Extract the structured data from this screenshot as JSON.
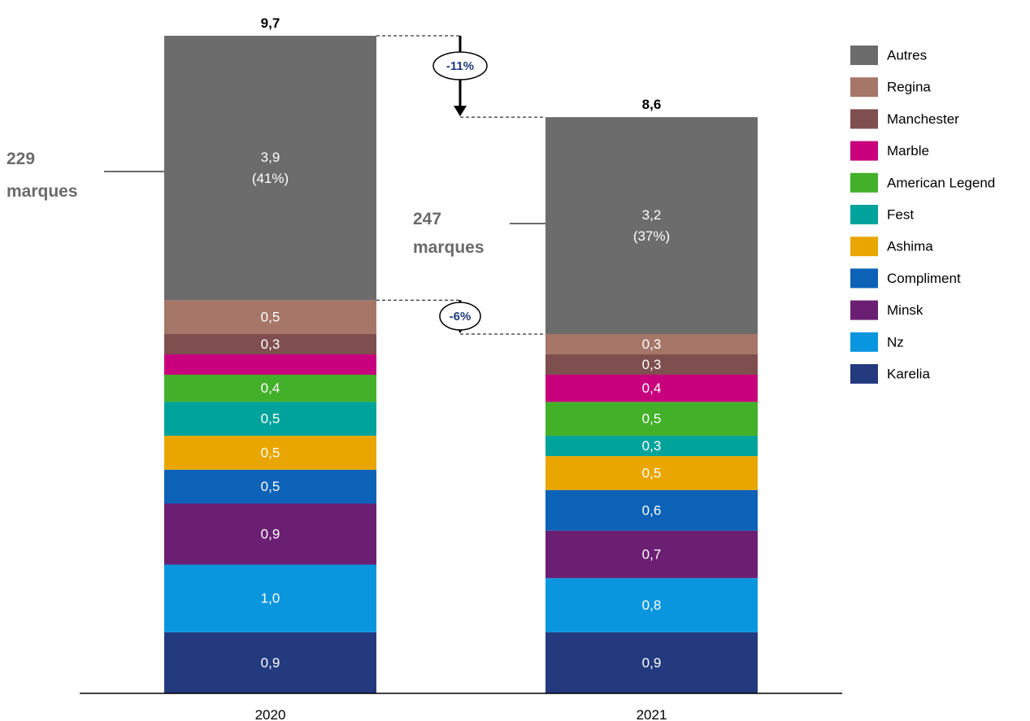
{
  "chart_data": {
    "type": "bar",
    "stacked": true,
    "categories": [
      "2020",
      "2021"
    ],
    "totals": [
      "9,7",
      "8,6"
    ],
    "series": [
      {
        "name": "Karelia",
        "color": "#233a7e",
        "values": [
          0.9,
          0.9
        ],
        "labels": [
          "0,9",
          "0,9"
        ]
      },
      {
        "name": "Nz",
        "color": "#0a96de",
        "values": [
          1.0,
          0.8
        ],
        "labels": [
          "1,0",
          "0,8"
        ]
      },
      {
        "name": "Minsk",
        "color": "#6b1f73",
        "values": [
          0.9,
          0.7
        ],
        "labels": [
          "0,9",
          "0,7"
        ]
      },
      {
        "name": "Compliment",
        "color": "#0c62b7",
        "values": [
          0.5,
          0.6
        ],
        "labels": [
          "0,5",
          "0,6"
        ]
      },
      {
        "name": "Ashima",
        "color": "#eaa600",
        "values": [
          0.5,
          0.5
        ],
        "labels": [
          "0,5",
          "0,5"
        ]
      },
      {
        "name": "Fest",
        "color": "#00a39b",
        "values": [
          0.5,
          0.3
        ],
        "labels": [
          "0,5",
          "0,3"
        ]
      },
      {
        "name": "American Legend",
        "color": "#43b02a",
        "values": [
          0.4,
          0.5
        ],
        "labels": [
          "0,4",
          "0,5"
        ]
      },
      {
        "name": "Marble",
        "color": "#c8007d",
        "values": [
          0.3,
          0.4
        ],
        "labels": [
          "",
          "0,4"
        ]
      },
      {
        "name": "Manchester",
        "color": "#7f4e4e",
        "values": [
          0.3,
          0.3
        ],
        "labels": [
          "0,3",
          "0,3"
        ]
      },
      {
        "name": "Regina",
        "color": "#a67669",
        "values": [
          0.5,
          0.3
        ],
        "labels": [
          "0,5",
          "0,3"
        ]
      },
      {
        "name": "Autres",
        "color": "#6c6c6c",
        "values": [
          3.9,
          3.2
        ],
        "labels": [
          "3,9",
          "3,2"
        ],
        "sublabels": [
          "(41%)",
          "(37%)"
        ]
      }
    ],
    "legend": {
      "placement": "right",
      "order": [
        "Autres",
        "Regina",
        "Manchester",
        "Marble",
        "American Legend",
        "Fest",
        "Ashima",
        "Compliment",
        "Minsk",
        "Nz",
        "Karelia"
      ]
    },
    "annotations": {
      "brands": [
        {
          "category": "2020",
          "line1": "229",
          "line2": "marques"
        },
        {
          "category": "2021",
          "line1": "247",
          "line2": "marques"
        }
      ],
      "changes": [
        {
          "label": "-11%",
          "between": "totals"
        },
        {
          "label": "-6%",
          "between": "non-autres"
        }
      ]
    },
    "ylim": [
      0,
      9.7
    ],
    "grid": false
  }
}
